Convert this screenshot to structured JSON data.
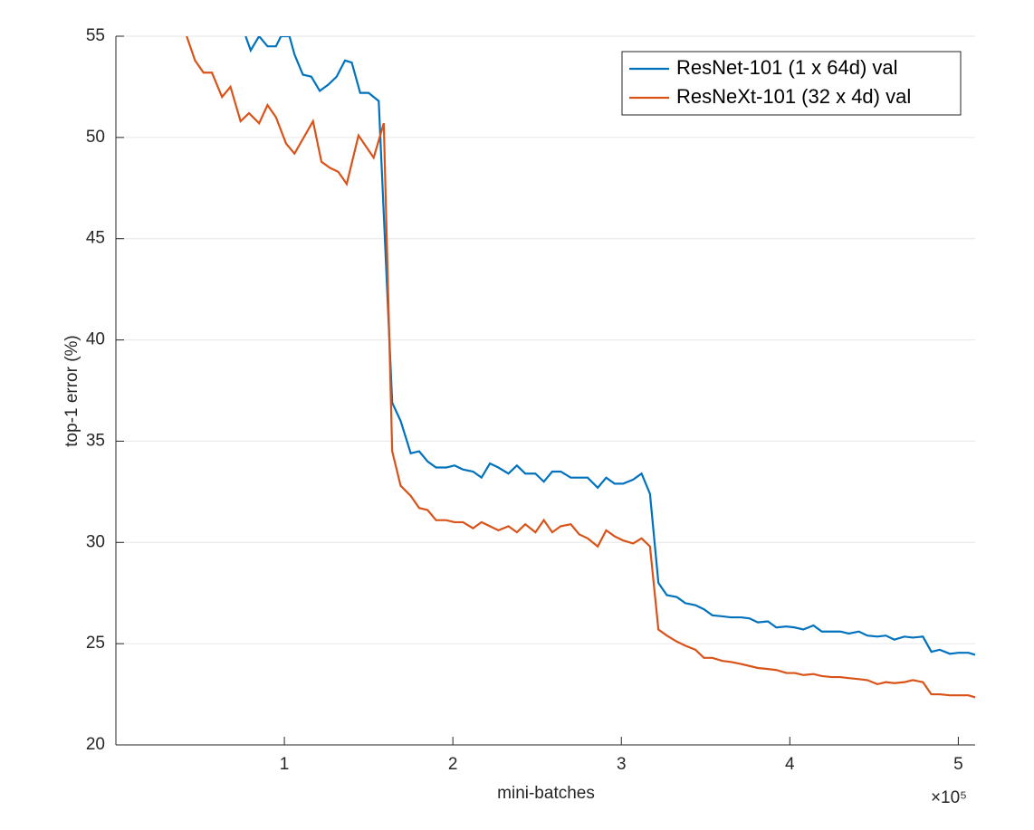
{
  "chart_data": {
    "type": "line",
    "x_label": "mini-batches",
    "y_label": "top-1 error (%)",
    "x_multiplier_label": "×10⁵",
    "xlim": [
      0,
      5.1
    ],
    "ylim": [
      20,
      55
    ],
    "xticks": [
      1,
      2,
      3,
      4,
      5
    ],
    "yticks": [
      20,
      25,
      30,
      35,
      40,
      45,
      50,
      55
    ],
    "grid": true,
    "legend": "upper right",
    "series": [
      {
        "name": "ResNet-101 (1 x 64d) val",
        "color": "#0072bd",
        "x": [
          0.77,
          0.8,
          0.85,
          0.9,
          0.95,
          0.98,
          1.03,
          1.06,
          1.11,
          1.16,
          1.21,
          1.26,
          1.31,
          1.36,
          1.4,
          1.45,
          1.5,
          1.56,
          1.64,
          1.69,
          1.75,
          1.8,
          1.85,
          1.9,
          1.96,
          2.01,
          2.06,
          2.12,
          2.17,
          2.22,
          2.27,
          2.33,
          2.38,
          2.43,
          2.49,
          2.54,
          2.59,
          2.64,
          2.7,
          2.75,
          2.8,
          2.86,
          2.91,
          2.96,
          3.01,
          3.07,
          3.12,
          3.17,
          3.22,
          3.27,
          3.33,
          3.38,
          3.44,
          3.49,
          3.54,
          3.6,
          3.65,
          3.71,
          3.76,
          3.81,
          3.87,
          3.92,
          3.98,
          4.03,
          4.08,
          4.14,
          4.19,
          4.25,
          4.3,
          4.35,
          4.41,
          4.46,
          4.52,
          4.57,
          4.62,
          4.68,
          4.73,
          4.79,
          4.84,
          4.89,
          4.95,
          5.0,
          5.06,
          5.1
        ],
        "values": [
          55,
          54.3,
          55,
          54.5,
          54.5,
          55,
          55,
          54.1,
          53.1,
          53,
          52.3,
          52.6,
          53,
          53.8,
          53.7,
          52.2,
          52.2,
          51.8,
          36.9,
          36,
          34.4,
          34.5,
          34,
          33.7,
          33.7,
          33.8,
          33.6,
          33.5,
          33.2,
          33.9,
          33.7,
          33.4,
          33.8,
          33.4,
          33.4,
          33,
          33.5,
          33.5,
          33.2,
          33.2,
          33.2,
          32.7,
          33.2,
          32.9,
          32.9,
          33.1,
          33.4,
          32.4,
          28,
          27.4,
          27.3,
          27,
          26.9,
          26.7,
          26.4,
          26.35,
          26.3,
          26.3,
          26.25,
          26.05,
          26.1,
          25.8,
          25.85,
          25.8,
          25.7,
          25.9,
          25.6,
          25.6,
          25.6,
          25.5,
          25.6,
          25.4,
          25.35,
          25.4,
          25.2,
          25.35,
          25.3,
          25.35,
          24.6,
          24.7,
          24.5,
          24.55,
          24.55,
          24.45
        ]
      },
      {
        "name": "ResNeXt-101 (32 x 4d) val",
        "color": "#d95319",
        "x": [
          0.42,
          0.47,
          0.52,
          0.57,
          0.63,
          0.68,
          0.74,
          0.79,
          0.85,
          0.9,
          0.95,
          1.01,
          1.06,
          1.17,
          1.22,
          1.27,
          1.32,
          1.37,
          1.44,
          1.53,
          1.59,
          1.64,
          1.69,
          1.75,
          1.8,
          1.85,
          1.9,
          1.96,
          2.01,
          2.06,
          2.12,
          2.17,
          2.22,
          2.27,
          2.33,
          2.38,
          2.43,
          2.49,
          2.54,
          2.59,
          2.64,
          2.7,
          2.75,
          2.8,
          2.86,
          2.91,
          2.96,
          3.01,
          3.07,
          3.12,
          3.17,
          3.22,
          3.27,
          3.33,
          3.38,
          3.44,
          3.49,
          3.54,
          3.6,
          3.65,
          3.71,
          3.76,
          3.81,
          3.87,
          3.92,
          3.98,
          4.03,
          4.08,
          4.14,
          4.19,
          4.25,
          4.3,
          4.35,
          4.41,
          4.46,
          4.52,
          4.57,
          4.62,
          4.68,
          4.73,
          4.79,
          4.84,
          4.89,
          4.95,
          5.0,
          5.06,
          5.1
        ],
        "values": [
          55,
          53.8,
          53.2,
          53.2,
          52,
          52.5,
          50.8,
          51.2,
          50.7,
          51.6,
          51,
          49.7,
          49.2,
          50.8,
          48.8,
          48.5,
          48.3,
          47.7,
          50.1,
          49,
          50.7,
          34.5,
          32.8,
          32.3,
          31.7,
          31.6,
          31.1,
          31.1,
          31,
          31,
          30.7,
          31,
          30.8,
          30.6,
          30.8,
          30.5,
          30.9,
          30.5,
          31.1,
          30.5,
          30.8,
          30.9,
          30.4,
          30.2,
          29.8,
          30.6,
          30.3,
          30.1,
          29.95,
          30.2,
          29.8,
          25.7,
          25.4,
          25.1,
          24.9,
          24.7,
          24.3,
          24.3,
          24.15,
          24.1,
          24,
          23.9,
          23.8,
          23.75,
          23.7,
          23.55,
          23.55,
          23.45,
          23.5,
          23.4,
          23.35,
          23.35,
          23.3,
          23.25,
          23.2,
          23,
          23.1,
          23.05,
          23.1,
          23.2,
          23.1,
          22.5,
          22.5,
          22.45,
          22.45,
          22.45,
          22.35
        ]
      }
    ]
  }
}
